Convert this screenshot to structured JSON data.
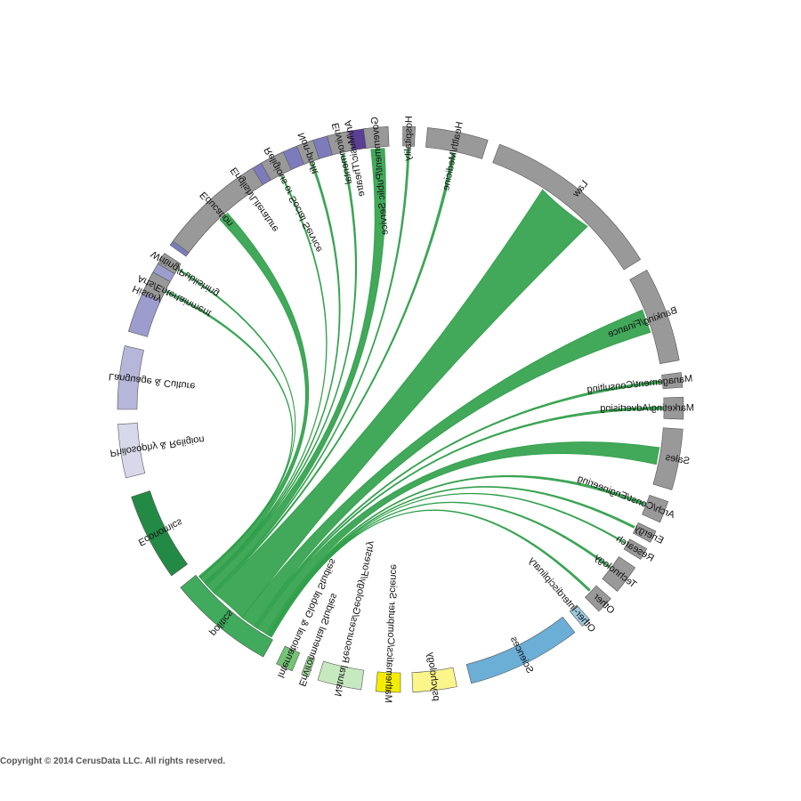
{
  "chart_data": {
    "type": "chord",
    "title": "",
    "source_major": "politics",
    "majors": [
      {
        "label": "Art/Music/Theatre",
        "start": 97.0,
        "end": 103.5,
        "color": "#5b3f95"
      },
      {
        "label": "English/Literature",
        "start": 105.0,
        "end": 144.5,
        "color": "#7e7bbd"
      },
      {
        "label": "History",
        "start": 147.0,
        "end": 164.0,
        "color": "#9c9ccd"
      },
      {
        "label": "Language & Culture",
        "start": 167.0,
        "end": 180.0,
        "color": "#b6b6da"
      },
      {
        "label": "Philosophy & Religion",
        "start": 183.0,
        "end": 194.0,
        "color": "#d9d8eb"
      },
      {
        "label": "Economics",
        "start": 198.0,
        "end": 216.0,
        "color": "#238a45"
      },
      {
        "label": "politics",
        "start": 219.0,
        "end": 241.0,
        "color": "#41ab5d"
      },
      {
        "label": "International & Global Studies",
        "start": 244.0,
        "end": 247.5,
        "color": "#74c476"
      },
      {
        "label": "Environmental Studies",
        "start": 249.5,
        "end": 251.0,
        "color": "#a1d99b"
      },
      {
        "label": "Natural Resources/Geology/Forestry",
        "start": 253.0,
        "end": 262.0,
        "color": "#c7e9c0"
      },
      {
        "label": "Mathematics/Computer Science",
        "start": 265.0,
        "end": 270.0,
        "color": "#f4ed00"
      },
      {
        "label": "psychology",
        "start": 272.5,
        "end": 281.5,
        "color": "#fbf58a"
      },
      {
        "label": "Sciences",
        "start": 284.5,
        "end": 308.0,
        "color": "#6baed6"
      },
      {
        "label": "Other-Interdisciplinary",
        "start": 310.0,
        "end": 312.0,
        "color": "#9ecae1"
      }
    ],
    "careers": [
      {
        "label": "Other",
        "start": 314.5,
        "end": 318.0,
        "value": 0.3
      },
      {
        "label": "Technology",
        "start": 320.0,
        "end": 326.0,
        "value": 0.3
      },
      {
        "label": "Research",
        "start": 328.0,
        "end": 330.5,
        "value": 0.2
      },
      {
        "label": "Energy",
        "start": 332.0,
        "end": 334.5,
        "value": 0.3
      },
      {
        "label": "Arch/Const/Engineering",
        "start": 336.5,
        "end": 341.0,
        "value": 0.4
      },
      {
        "label": "Sales",
        "start": 343.5,
        "end": 356.0,
        "value": 2.5
      },
      {
        "label": "Marketing/Advertising",
        "start": 358.0,
        "end": 362.5,
        "value": 0.4
      },
      {
        "label": "Management/Consulting",
        "start": 364.5,
        "end": 367.5,
        "value": 0.4
      },
      {
        "label": "Banking/Finance",
        "start": 370.0,
        "end": 389.5,
        "value": 3.5
      },
      {
        "label": "Law",
        "start": 392.0,
        "end": 429.5,
        "value": 8.5
      },
      {
        "label": "Health/Medicine",
        "start": 432.0,
        "end": 444.5,
        "value": 0.4
      },
      {
        "label": "Hospitality",
        "start": 447.0,
        "end": 449.5,
        "value": 0.3
      },
      {
        "label": "Government/Public Service",
        "start": 452.5,
        "end": 457.5,
        "value": 2.0
      },
      {
        "label": "Environmental",
        "start": 460.5,
        "end": 465.0,
        "value": 0.3
      },
      {
        "label": "Non-profit",
        "start": 468.0,
        "end": 471.5,
        "value": 0.3
      },
      {
        "label": "Religious or Social Service",
        "start": 474.5,
        "end": 479.5,
        "value": 0.2
      },
      {
        "label": "Education",
        "start": 481.5,
        "end": 503.5,
        "value": 1.5
      },
      {
        "label": "Writing/Publishing",
        "start": 506.5,
        "end": 509.0,
        "value": 0.2
      },
      {
        "label": "Arts/Entertainment",
        "start": 511.0,
        "end": 515.5,
        "value": 0.3
      }
    ],
    "link_color": "#2e9e48",
    "career_color": "#999999"
  },
  "footer": {
    "copyright": "Copyright © 2014 CerusData LLC.  All rights reserved."
  }
}
